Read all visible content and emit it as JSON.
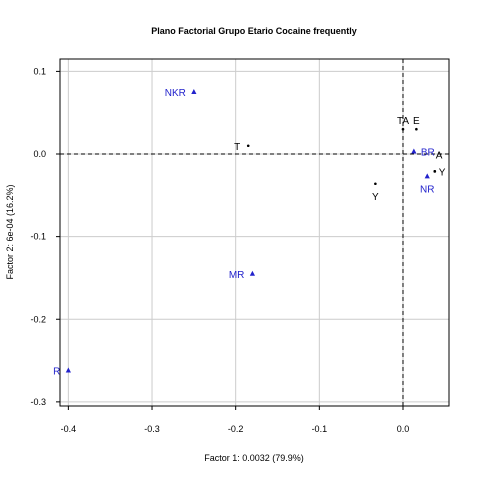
{
  "chart_data": {
    "type": "scatter",
    "title": "Plano Factorial Grupo Etario Cocaine frequently",
    "xlabel": "Factor 1: 0.0032 (79.9%)",
    "ylabel": "Factor 2: 6e-04 (16.2%)",
    "xlim": [
      -0.41,
      0.055
    ],
    "ylim": [
      -0.305,
      0.115
    ],
    "x_ticks": [
      -0.4,
      -0.3,
      -0.2,
      -0.1,
      0.0
    ],
    "x_tick_labels": [
      "-0.4",
      "-0.3",
      "-0.2",
      "-0.1",
      "0.0"
    ],
    "y_ticks": [
      -0.3,
      -0.2,
      -0.1,
      0.0,
      0.1
    ],
    "y_tick_labels": [
      "-0.3",
      "-0.2",
      "-0.1",
      "0.0",
      "0.1"
    ],
    "grid": true,
    "reference_lines": {
      "x": 0,
      "y": 0
    },
    "colors": {
      "row_points": "#000000",
      "column_points": "#2222cc",
      "grid": "#cccccc"
    },
    "row_points": [
      {
        "label": "T",
        "x": -0.185,
        "y": 0.01,
        "label_pos": "left"
      },
      {
        "label": "TA",
        "x": 0.0,
        "y": 0.03,
        "label_pos": "top"
      },
      {
        "label": "E",
        "x": 0.016,
        "y": 0.03,
        "label_pos": "top"
      },
      {
        "label": "A",
        "x": 0.038,
        "y": -0.021,
        "label_pos": "top-right"
      },
      {
        "label": "Y",
        "x": -0.033,
        "y": -0.036,
        "label_pos": "below"
      },
      {
        "label": "Y",
        "x": 0.038,
        "y": -0.021,
        "label_pos": "right-below"
      }
    ],
    "column_points": [
      {
        "label": "NKR",
        "x": -0.25,
        "y": 0.075,
        "label_pos": "left"
      },
      {
        "label": "MR",
        "x": -0.18,
        "y": -0.145,
        "label_pos": "left"
      },
      {
        "label": "R",
        "x": -0.4,
        "y": -0.262,
        "label_pos": "left"
      },
      {
        "label": "BR",
        "x": 0.013,
        "y": 0.003,
        "label_pos": "right"
      },
      {
        "label": "NR",
        "x": 0.029,
        "y": -0.027,
        "label_pos": "below"
      }
    ]
  }
}
